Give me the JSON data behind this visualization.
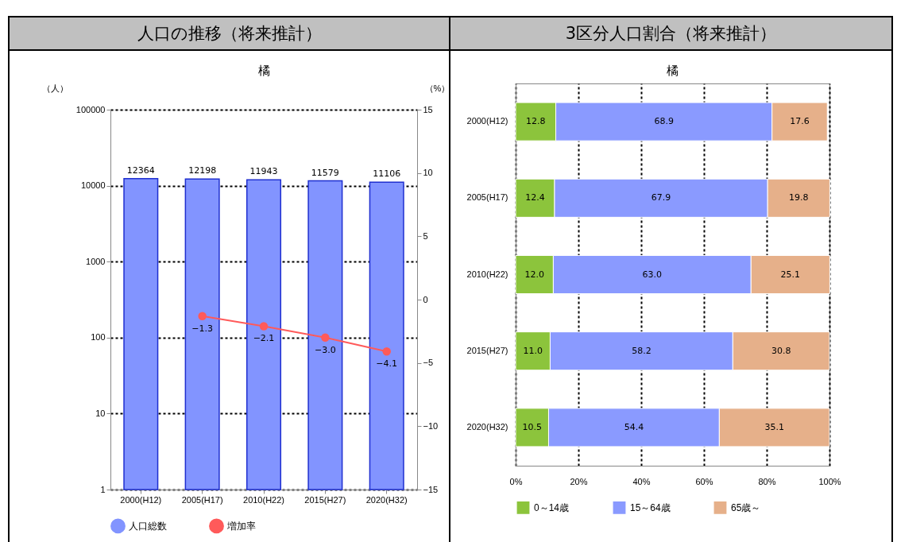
{
  "chart_data": [
    {
      "type": "bar",
      "title": "人口の推移（将来推計）",
      "subtitle": "橘",
      "ylabel": "（人）",
      "y2label": "（%）",
      "categories": [
        "2000(H12)",
        "2005(H17)",
        "2010(H22)",
        "2015(H27)",
        "2020(H32)"
      ],
      "series": [
        {
          "name": "人口総数",
          "color": "#8294ff",
          "values": [
            12364,
            12198,
            11943,
            11579,
            11106
          ],
          "value_labels": [
            "12364",
            "12198",
            "11943",
            "11579",
            "11106"
          ]
        },
        {
          "name": "増加率",
          "type": "line",
          "axis": "y2",
          "color": "#ff5a5a",
          "values": [
            null,
            -1.3,
            -2.1,
            -3.0,
            -4.1
          ],
          "value_labels": [
            null,
            "−1.3",
            "−2.1",
            "−3.0",
            "−4.1"
          ]
        }
      ],
      "log": "y",
      "ylim": [
        1,
        100000
      ],
      "yticks": [
        1,
        10,
        100,
        1000,
        10000,
        100000
      ],
      "y2lim": [
        -15,
        15
      ],
      "y2ticks": [
        -15,
        -10,
        -5,
        0,
        5,
        10,
        15
      ],
      "grid": "y",
      "legend": "bottom",
      "marker": "circle"
    },
    {
      "type": "bar",
      "orientation": "horizontal",
      "stacked": true,
      "title": "3区分人口割合（将来推計）",
      "subtitle": "橘",
      "categories": [
        "2000(H12)",
        "2005(H17)",
        "2010(H22)",
        "2015(H27)",
        "2020(H32)"
      ],
      "series": [
        {
          "name": "0～14歳",
          "color": "#8cc43c",
          "values": [
            12.8,
            12.4,
            12.0,
            11.0,
            10.5
          ],
          "value_labels": [
            "12.8",
            "12.4",
            "12.0",
            "11.0",
            "10.5"
          ]
        },
        {
          "name": "15～64歳",
          "color": "#8a9aff",
          "values": [
            68.9,
            67.9,
            63.0,
            58.2,
            54.4
          ],
          "value_labels": [
            "68.9",
            "67.9",
            "63.0",
            "58.2",
            "54.4"
          ]
        },
        {
          "name": "65歳～",
          "color": "#e6b08a",
          "values": [
            17.6,
            19.8,
            25.1,
            30.8,
            35.1
          ],
          "value_labels": [
            "17.6",
            "19.8",
            "25.1",
            "30.8",
            "35.1"
          ]
        }
      ],
      "xlim": [
        0,
        100
      ],
      "xticks": [
        {
          "value": 0,
          "label": "0%"
        },
        {
          "value": 20,
          "label": "20%"
        },
        {
          "value": 40,
          "label": "40%"
        },
        {
          "value": 60,
          "label": "60%"
        },
        {
          "value": 80,
          "label": "80%"
        },
        {
          "value": 100,
          "label": "100%"
        }
      ],
      "grid": "x",
      "legend": "bottom"
    }
  ]
}
